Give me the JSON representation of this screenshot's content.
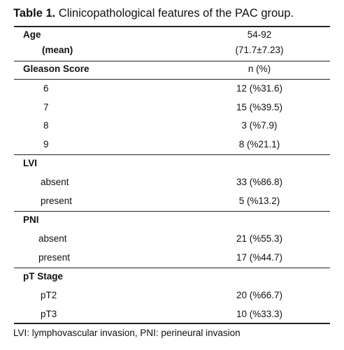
{
  "title": {
    "label": "Table 1.",
    "text": "Clinicopathological features of the PAC group."
  },
  "table": {
    "rows": [
      [
        "Age",
        "54-92"
      ],
      [
        "(mean)",
        "(71.7±7.23)"
      ],
      [
        "Gleason Score",
        "n (%)"
      ],
      [
        "6",
        "12 (%31.6)"
      ],
      [
        "7",
        "15 (%39.5)"
      ],
      [
        "8",
        "3 (%7.9)"
      ],
      [
        "9",
        "8 (%21.1)"
      ],
      [
        "LVI"
      ],
      [
        "absent",
        "33 (%86.8)"
      ],
      [
        "present",
        "5 (%13.2)"
      ],
      [
        "PNI"
      ],
      [
        "absent",
        "21 (%55.3)"
      ],
      [
        "present",
        "17 (%44.7)"
      ],
      [
        "pT Stage"
      ],
      [
        "pT2",
        "20 (%66.7)"
      ],
      [
        "pT3",
        "10 (%33.3)"
      ]
    ]
  },
  "footnote": "LVI: lymphovascular invasion, PNI: perineural invasion"
}
